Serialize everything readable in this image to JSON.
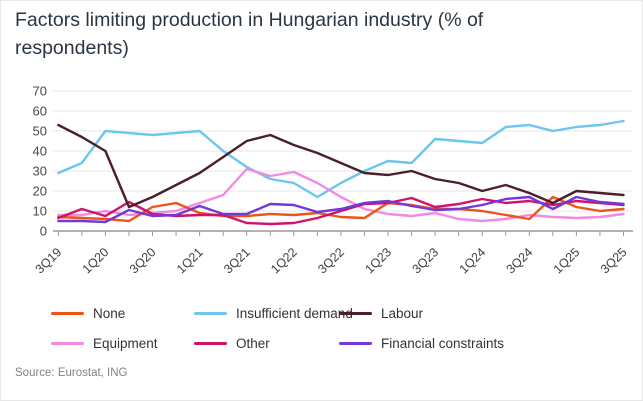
{
  "title": "Factors limiting production in Hungarian industry (% of respondents)",
  "source": "Source: Eurostat, ING",
  "axis": {
    "y_tick_labels": [
      "0",
      "10",
      "20",
      "30",
      "40",
      "50",
      "60",
      "70"
    ],
    "x_tick_labels": [
      "3Q19",
      "1Q20",
      "3Q20",
      "1Q21",
      "3Q21",
      "1Q22",
      "3Q22",
      "1Q23",
      "3Q23",
      "1Q24",
      "3Q24",
      "1Q25",
      "3Q25"
    ]
  },
  "colors": {
    "grid": "#e7e7e7",
    "axis_line": "#9a9a9a",
    "tick_text": "#3f3f3f",
    "y_text": "#4a4a4a"
  },
  "chart_data": {
    "type": "line",
    "title": "Factors limiting production in Hungarian industry (% of respondents)",
    "x_label_every": 2,
    "x_quarters": [
      "3Q19",
      "4Q19",
      "1Q20",
      "2Q20",
      "3Q20",
      "4Q20",
      "1Q21",
      "2Q21",
      "3Q21",
      "4Q21",
      "1Q22",
      "2Q22",
      "3Q22",
      "4Q22",
      "1Q23",
      "2Q23",
      "3Q23",
      "4Q23",
      "1Q24",
      "2Q24",
      "3Q24",
      "4Q24",
      "1Q25",
      "2Q25",
      "3Q25"
    ],
    "ylim": [
      0,
      70
    ],
    "y_ticks": [
      0,
      10,
      20,
      30,
      40,
      50,
      60,
      70
    ],
    "grid": "horizontal",
    "legend_position": "bottom",
    "series": [
      {
        "name": "None",
        "color": "#ed5518",
        "values": [
          7,
          6.5,
          6,
          5,
          12,
          14,
          9,
          7.5,
          7.5,
          8.5,
          8,
          9,
          7,
          6.5,
          14,
          13,
          11,
          11,
          10,
          8,
          6,
          17,
          12,
          10,
          11
        ]
      },
      {
        "name": "Insufficient demand",
        "color": "#6cc6ee",
        "values": [
          29,
          34,
          50,
          49,
          48,
          49,
          50,
          40,
          32,
          26,
          24,
          17,
          24,
          30,
          35,
          34,
          46,
          45,
          44,
          52,
          53,
          50,
          52,
          53,
          55
        ]
      },
      {
        "name": "Labour",
        "color": "#4a1f2a",
        "values": [
          53,
          47,
          40,
          12,
          17,
          23,
          29,
          37,
          45,
          48,
          43,
          39,
          34,
          29,
          28,
          30,
          26,
          24,
          20,
          23,
          19,
          14,
          20,
          19,
          18
        ]
      },
      {
        "name": "Equipment",
        "color": "#f18ae0",
        "values": [
          8,
          8,
          10,
          8,
          9,
          10,
          14,
          18,
          31,
          27.5,
          29.5,
          24,
          17,
          11,
          8.5,
          7.5,
          9,
          6,
          5,
          6,
          8,
          7,
          6.5,
          7,
          8.5
        ]
      },
      {
        "name": "Other",
        "color": "#d01369",
        "values": [
          6.5,
          11,
          7.5,
          14.5,
          8.5,
          7.5,
          8,
          8,
          4,
          3.5,
          4,
          6.5,
          10,
          13.5,
          14,
          16.5,
          12,
          13.5,
          16,
          14,
          15,
          13,
          15,
          14,
          13
        ]
      },
      {
        "name": "Financial constraints",
        "color": "#7238d8",
        "values": [
          5,
          5,
          4.5,
          10.5,
          7.5,
          8,
          12.5,
          8.5,
          8.5,
          13.5,
          13,
          9.5,
          11,
          14,
          15,
          12.5,
          10.5,
          11,
          13,
          16,
          17,
          11,
          17,
          14.5,
          13.5
        ]
      }
    ]
  }
}
